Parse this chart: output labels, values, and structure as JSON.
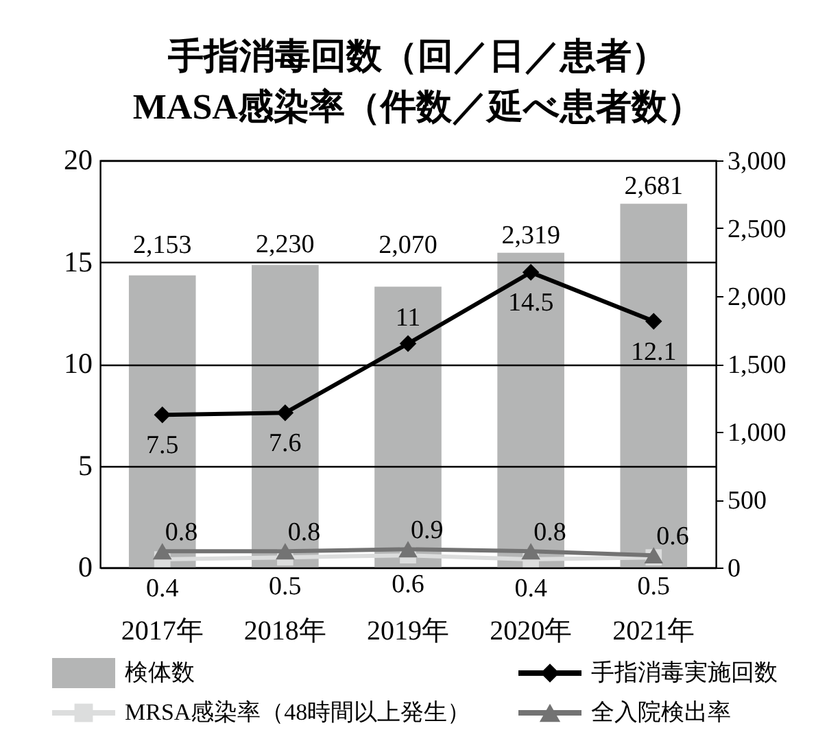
{
  "chart_data": {
    "type": "bar",
    "title": "手指消毒回数（回／日／患者）\nMASA感染率（件数／延べ患者数）",
    "categories": [
      "2017年",
      "2018年",
      "2019年",
      "2020年",
      "2021年"
    ],
    "series": [
      {
        "name": "検体数",
        "axis": "y2",
        "color": "#b4b5b5",
        "values": [
          2153,
          2230,
          2070,
          2319,
          2681
        ],
        "value_labels": [
          "2,153",
          "2,230",
          "2,070",
          "2,319",
          "2,681"
        ]
      },
      {
        "name": "手指消毒実施回数",
        "type": "line",
        "marker": "diamond",
        "color": "#000000",
        "values": [
          7.5,
          7.6,
          11,
          14.5,
          12.1
        ],
        "value_labels": [
          "7.5",
          "7.6",
          "11",
          "14.5",
          "12.1"
        ]
      },
      {
        "name": "MRSA感染率（48時間以上発生）",
        "type": "line",
        "marker": "square",
        "color": "#dcdddd",
        "values": [
          0.4,
          0.5,
          0.6,
          0.4,
          0.5
        ],
        "value_labels": [
          "0.4",
          "0.5",
          "0.6",
          "0.4",
          "0.5"
        ]
      },
      {
        "name": "全入院検出率",
        "type": "line",
        "marker": "triangle",
        "color": "#737373",
        "values": [
          0.8,
          0.8,
          0.9,
          0.8,
          0.6
        ],
        "value_labels": [
          "0.8",
          "0.8",
          "0.9",
          "0.8",
          "0.6"
        ]
      }
    ],
    "ylim": [
      0,
      20
    ],
    "yticks": [
      0,
      5,
      10,
      15,
      20
    ],
    "y2lim": [
      0,
      3000
    ],
    "y2ticks": [
      0,
      500,
      {
        "value": 1000,
        "label": "1,000"
      },
      {
        "value": 1500,
        "label": "1,500"
      },
      {
        "value": 2000,
        "label": "2,000"
      },
      {
        "value": 2500,
        "label": "2,500"
      },
      {
        "value": 3000,
        "label": "3,000"
      }
    ],
    "grid": "y",
    "legend": "bottom"
  }
}
